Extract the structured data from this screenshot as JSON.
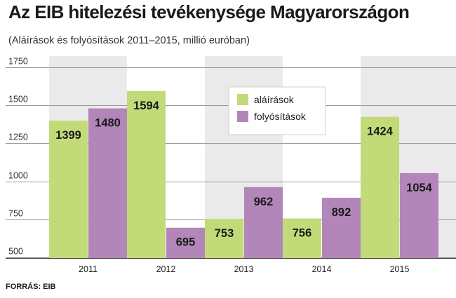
{
  "header": {
    "title": "Az EIB hitelezési tevékenysége Magyarországon",
    "subtitle": "(Aláírások és folyósítások 2011–2015, millió euróban)"
  },
  "footer": {
    "source": "FORRÁS: EIB"
  },
  "colors": {
    "alairasok": "#c3da79",
    "folyositasok": "#b386ba",
    "gridline": "#9a9a9a",
    "panel_a": "#eaeaea",
    "panel_b": "#ffffff"
  },
  "chart_data": {
    "type": "bar",
    "categories": [
      "2011",
      "2012",
      "2013",
      "2014",
      "2015"
    ],
    "series": [
      {
        "name": "aláírások",
        "values": [
          1399,
          1594,
          753,
          756,
          1424
        ]
      },
      {
        "name": "folyósítások",
        "values": [
          1480,
          695,
          962,
          892,
          1054
        ]
      }
    ],
    "y_ticks": [
      500,
      750,
      1000,
      1250,
      1500,
      1750
    ],
    "ylim": [
      500,
      1750
    ],
    "grid": true,
    "legend_position": "top-center"
  }
}
